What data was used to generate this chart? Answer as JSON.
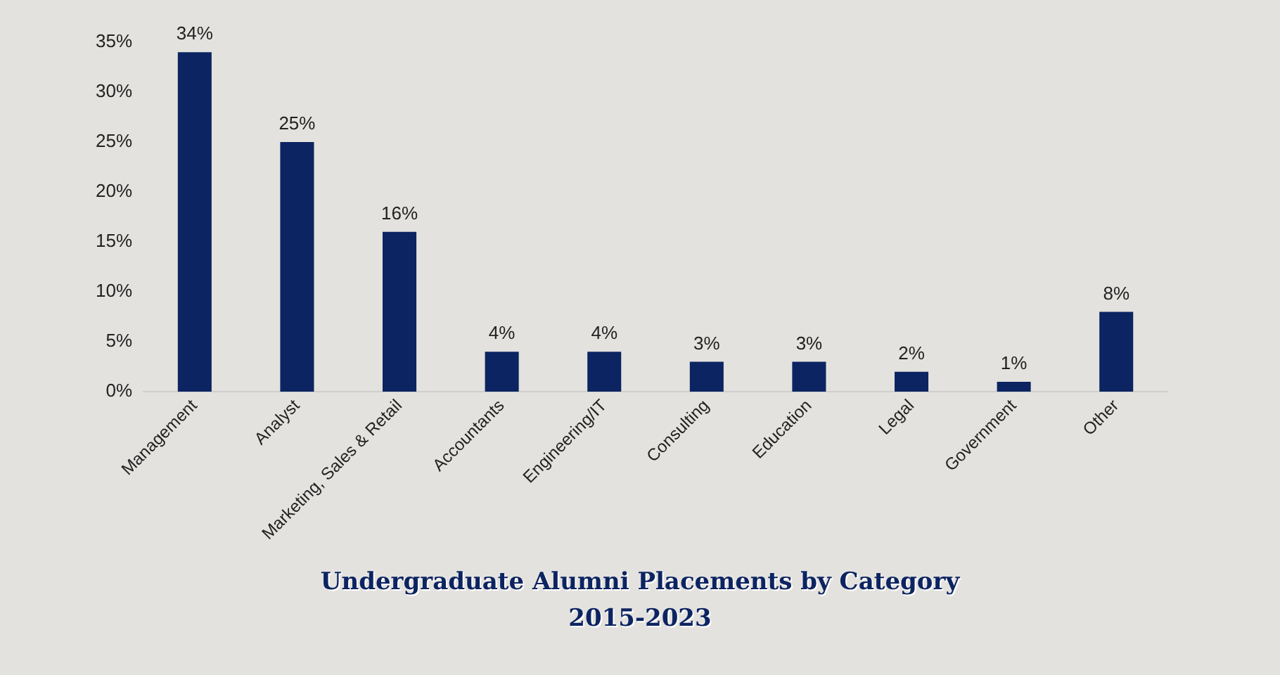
{
  "chart_data": {
    "type": "bar",
    "title": "Undergraduate Alumni Placements by Category",
    "subtitle": "2015-2023",
    "categories": [
      "Management",
      "Analyst",
      "Marketing, Sales & Retail",
      "Accountants",
      "Engineering/IT",
      "Consulting",
      "Education",
      "Legal",
      "Government",
      "Other"
    ],
    "values": [
      34,
      25,
      16,
      4,
      4,
      3,
      3,
      2,
      1,
      8
    ],
    "value_labels": [
      "34%",
      "25%",
      "16%",
      "4%",
      "4%",
      "3%",
      "3%",
      "2%",
      "1%",
      "8%"
    ],
    "color": "#0c2461",
    "ylim": [
      0,
      35
    ],
    "yticks": [
      {
        "value": 0,
        "label": "0%"
      },
      {
        "value": 5,
        "label": "5%"
      },
      {
        "value": 10,
        "label": "10%"
      },
      {
        "value": 15,
        "label": "15%"
      },
      {
        "value": 20,
        "label": "20%"
      },
      {
        "value": 25,
        "label": "25%"
      },
      {
        "value": 30,
        "label": "30%"
      },
      {
        "value": 35,
        "label": "35%"
      }
    ],
    "grid": false,
    "legend": false
  }
}
